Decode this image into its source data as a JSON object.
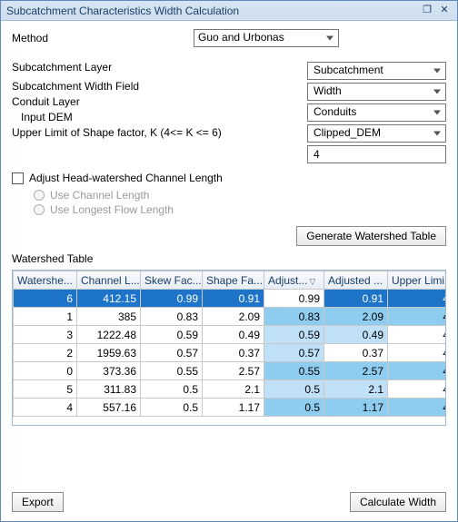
{
  "window": {
    "title": "Subcatchment Characteristics Width Calculation"
  },
  "labels": {
    "method": "Method",
    "subcatchLayer": "Subcatchment Layer",
    "subcatchWidthField": "Subcatchment Width Field",
    "conduitLayer": "Conduit Layer",
    "inputDEM": "Input DEM",
    "upperLimit": "Upper Limit of Shape factor, K (4<= K <= 6)",
    "adjustHead": "Adjust Head-watershed Channel Length",
    "useChannel": "Use Channel Length",
    "useLongest": "Use Longest Flow Length",
    "watershedTable": "Watershed Table",
    "generate": "Generate Watershed Table",
    "export": "Export",
    "calculate": "Calculate Width"
  },
  "fields": {
    "method": "Guo and Urbonas",
    "subcatchLayer": "Subcatchment",
    "subcatchWidthField": "Width",
    "conduitLayer": "Conduits",
    "inputDEM": "Clipped_DEM",
    "upperLimit": "4"
  },
  "table": {
    "columns": [
      "Watershe...",
      "Channel L...",
      "Skew Fac...",
      "Shape Fa...",
      "Adjust...",
      "Adjusted ...",
      "Upper Limi..."
    ],
    "col_widths": [
      "col-w0",
      "col-w1",
      "col-w2",
      "col-w3",
      "col-w4",
      "col-w5",
      "col-w6"
    ],
    "sort_col": 4,
    "rows": [
      {
        "sel": true,
        "edit_col": 4,
        "cells": [
          "6",
          "412.15",
          "0.99",
          "0.91",
          "0.99",
          "0.91",
          "4"
        ],
        "hl": {}
      },
      {
        "sel": false,
        "cells": [
          "1",
          "385",
          "0.83",
          "2.09",
          "0.83",
          "2.09",
          "4"
        ],
        "hl": {
          "4": "a",
          "5": "a",
          "6": "a"
        }
      },
      {
        "sel": false,
        "cells": [
          "3",
          "1222.48",
          "0.59",
          "0.49",
          "0.59",
          "0.49",
          "4"
        ],
        "hl": {
          "4": "b",
          "5": "b"
        }
      },
      {
        "sel": false,
        "cells": [
          "2",
          "1959.63",
          "0.57",
          "0.37",
          "0.57",
          "0.37",
          "4"
        ],
        "hl": {
          "4": "b"
        }
      },
      {
        "sel": false,
        "cells": [
          "0",
          "373.36",
          "0.55",
          "2.57",
          "0.55",
          "2.57",
          "4"
        ],
        "hl": {
          "4": "a",
          "5": "a",
          "6": "a"
        }
      },
      {
        "sel": false,
        "cells": [
          "5",
          "311.83",
          "0.5",
          "2.1",
          "0.5",
          "2.1",
          "4"
        ],
        "hl": {
          "4": "b",
          "5": "b"
        }
      },
      {
        "sel": false,
        "cells": [
          "4",
          "557.16",
          "0.5",
          "1.17",
          "0.5",
          "1.17",
          "4"
        ],
        "hl": {
          "4": "a",
          "5": "a",
          "6": "a"
        }
      }
    ]
  },
  "colors": {
    "title_grad_top": "#d7e4f2",
    "title_grad_bot": "#cddff0",
    "accent": "#1e74c8",
    "hl_a": "#8fcdf0",
    "hl_b": "#bfe0f7",
    "border": "#5f8bbc"
  }
}
